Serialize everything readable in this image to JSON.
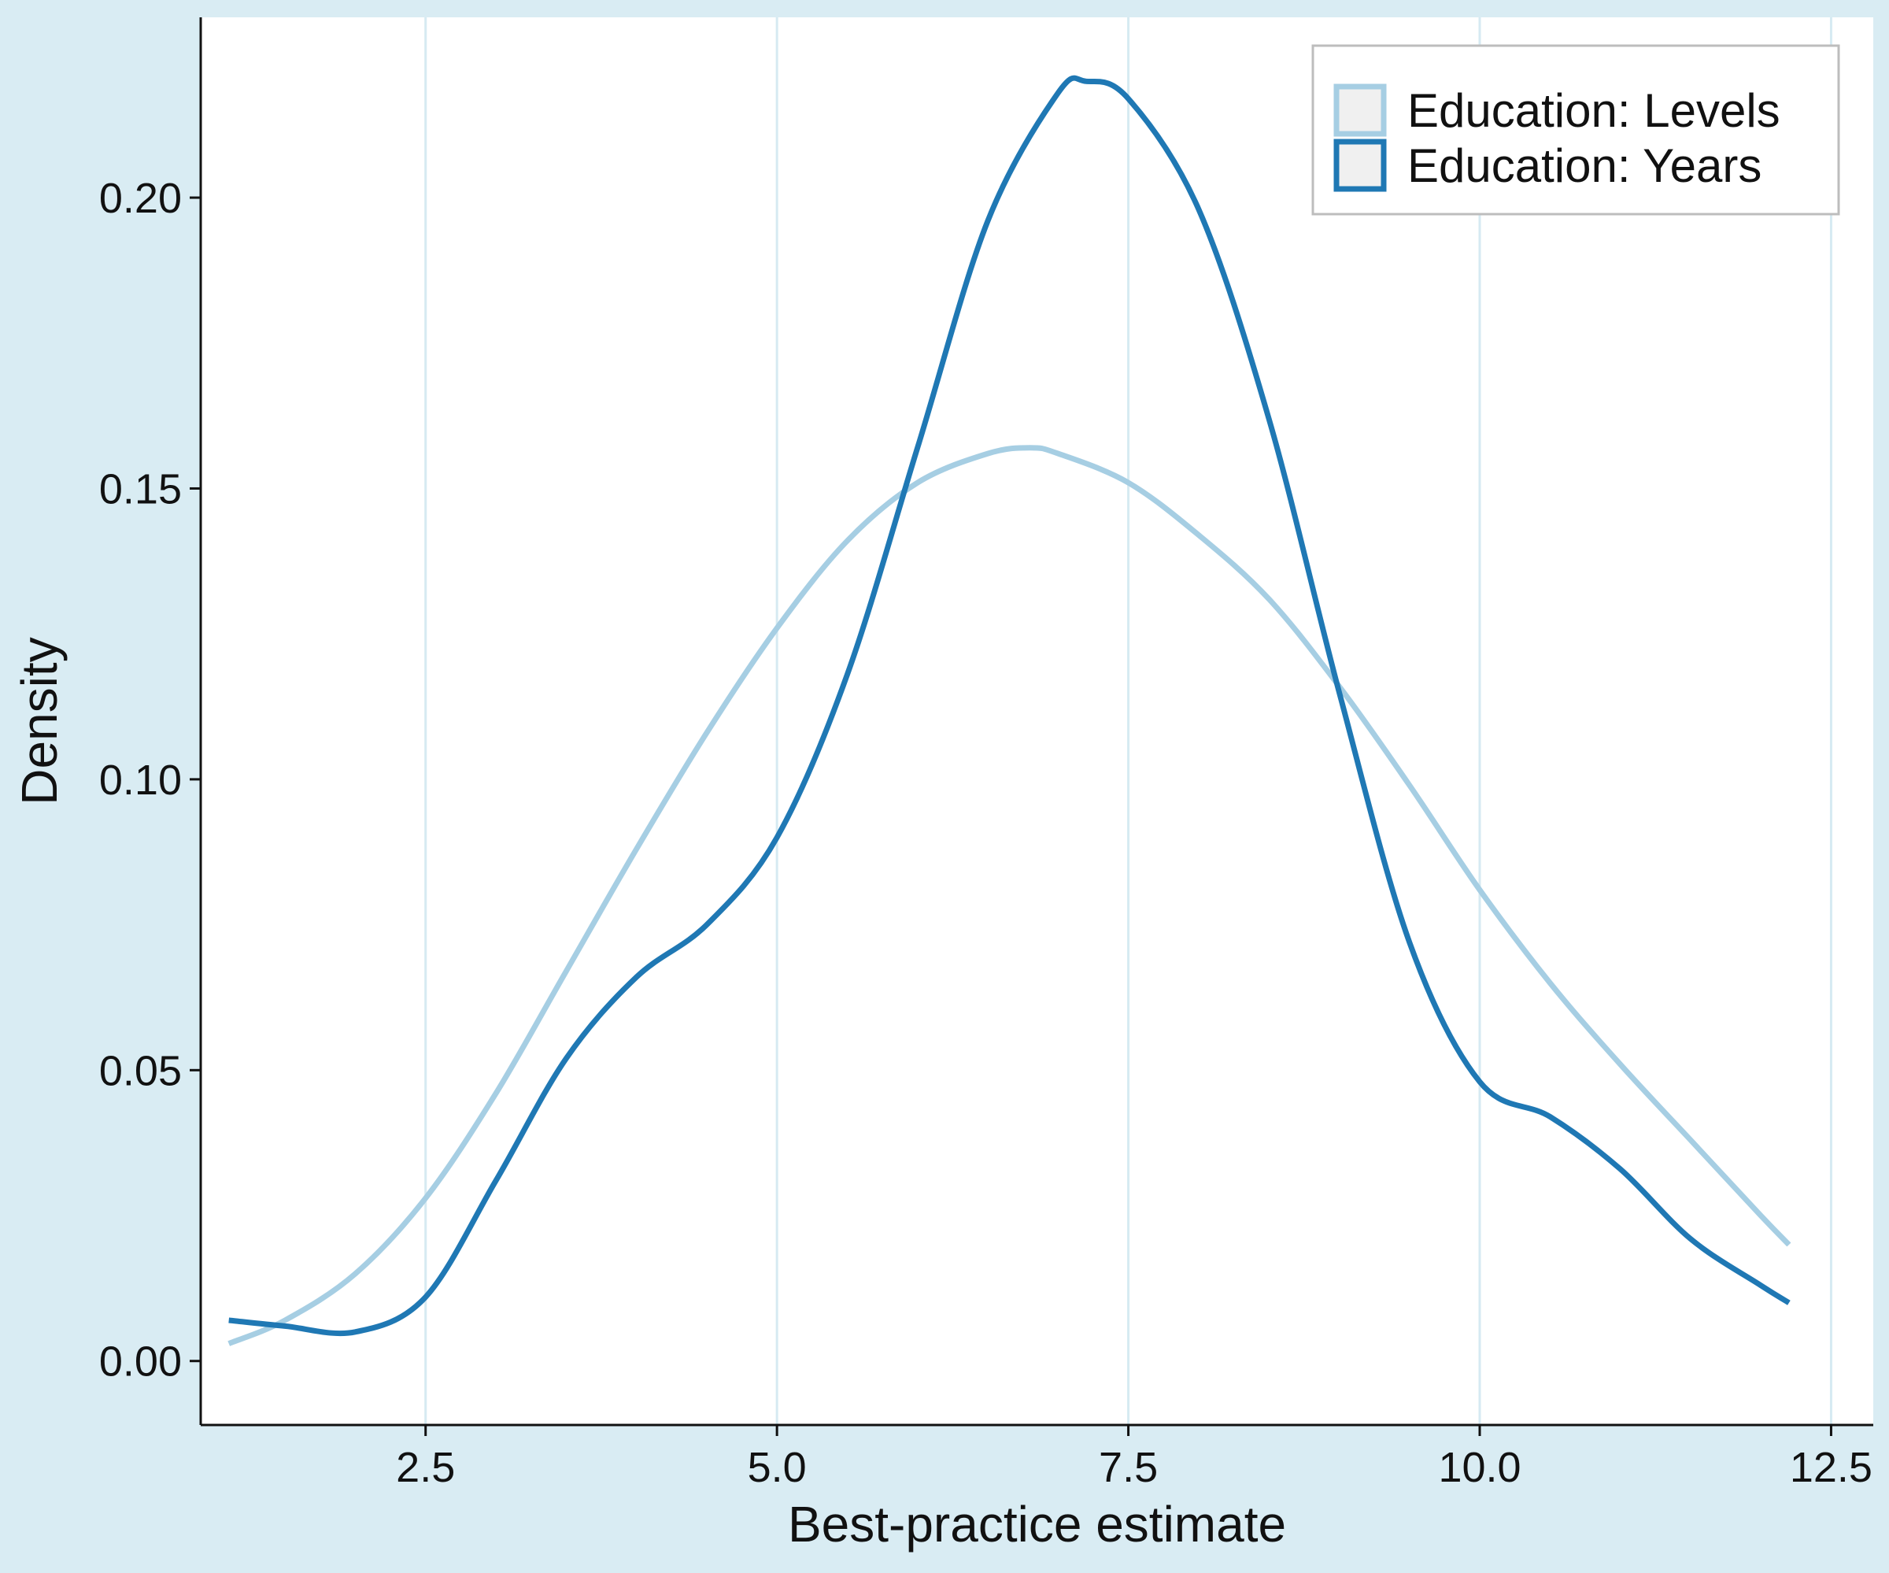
{
  "chart_data": {
    "type": "line",
    "subtype": "density",
    "title": "",
    "xlabel": "Best-practice estimate",
    "ylabel": "Density",
    "xlim": [
      0.9,
      12.8
    ],
    "ylim": [
      -0.011,
      0.231
    ],
    "x_ticks": [
      2.5,
      5.0,
      7.5,
      10.0,
      12.5
    ],
    "x_tick_labels": [
      "2.5",
      "5.0",
      "7.5",
      "10.0",
      "12.5"
    ],
    "y_ticks": [
      0.0,
      0.05,
      0.1,
      0.15,
      0.2
    ],
    "y_tick_labels": [
      "0.00",
      "0.05",
      "0.10",
      "0.15",
      "0.20"
    ],
    "grid": "vertical major lines only",
    "legend_position": "top-right",
    "colors": {
      "panel_background": "#ffffff",
      "outer_background": "#d9ecf3",
      "grid": "#d6eaf2"
    },
    "series": [
      {
        "name": "Education: Levels",
        "color": "#a6cee3",
        "x": [
          1.1,
          1.5,
          2.0,
          2.5,
          3.0,
          3.5,
          4.0,
          4.5,
          5.0,
          5.5,
          6.0,
          6.5,
          6.8,
          7.0,
          7.5,
          8.0,
          8.5,
          9.0,
          9.5,
          10.0,
          10.5,
          11.0,
          11.5,
          12.0,
          12.2
        ],
        "values": [
          0.003,
          0.007,
          0.015,
          0.028,
          0.046,
          0.067,
          0.088,
          0.108,
          0.126,
          0.141,
          0.151,
          0.156,
          0.157,
          0.156,
          0.151,
          0.142,
          0.131,
          0.116,
          0.099,
          0.081,
          0.065,
          0.051,
          0.038,
          0.025,
          0.02
        ]
      },
      {
        "name": "Education: Years",
        "color": "#1f78b4",
        "x": [
          1.1,
          1.5,
          2.0,
          2.5,
          3.0,
          3.5,
          4.0,
          4.5,
          5.0,
          5.5,
          6.0,
          6.5,
          7.0,
          7.2,
          7.5,
          8.0,
          8.5,
          9.0,
          9.5,
          10.0,
          10.5,
          11.0,
          11.5,
          12.0,
          12.2
        ],
        "values": [
          0.007,
          0.006,
          0.005,
          0.011,
          0.031,
          0.052,
          0.066,
          0.075,
          0.09,
          0.118,
          0.157,
          0.196,
          0.218,
          0.22,
          0.217,
          0.198,
          0.162,
          0.115,
          0.072,
          0.048,
          0.042,
          0.033,
          0.021,
          0.013,
          0.01
        ]
      }
    ]
  }
}
